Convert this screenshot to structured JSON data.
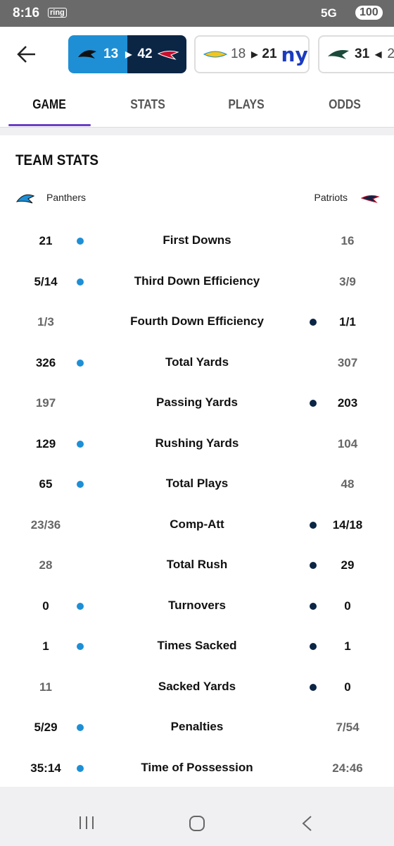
{
  "status_bar": {
    "time": "8:16",
    "app_icon": "ring",
    "network": "5G",
    "battery": "100"
  },
  "scoreboard": {
    "games": [
      {
        "away_score": "13",
        "home_score": "42"
      },
      {
        "away_score": "18",
        "home_score": "21",
        "home_logo": "ny"
      },
      {
        "away_score": "31",
        "home_score": "2"
      }
    ]
  },
  "tabs": {
    "items": [
      "GAME",
      "STATS",
      "PLAYS",
      "ODDS"
    ],
    "active": 0
  },
  "team_stats": {
    "title": "TEAM STATS",
    "away_team": "Panthers",
    "home_team": "Patriots",
    "away_color": "#1e8fd5",
    "home_color": "#0b2545",
    "rows": [
      {
        "label": "First Downs",
        "away": "21",
        "home": "16",
        "away_dot": true,
        "home_dot": false
      },
      {
        "label": "Third Down Efficiency",
        "away": "5/14",
        "home": "3/9",
        "away_dot": true,
        "home_dot": false
      },
      {
        "label": "Fourth Down Efficiency",
        "away": "1/3",
        "home": "1/1",
        "away_dot": false,
        "home_dot": true
      },
      {
        "label": "Total Yards",
        "away": "326",
        "home": "307",
        "away_dot": true,
        "home_dot": false
      },
      {
        "label": "Passing Yards",
        "away": "197",
        "home": "203",
        "away_dot": false,
        "home_dot": true
      },
      {
        "label": "Rushing Yards",
        "away": "129",
        "home": "104",
        "away_dot": true,
        "home_dot": false
      },
      {
        "label": "Total Plays",
        "away": "65",
        "home": "48",
        "away_dot": true,
        "home_dot": false
      },
      {
        "label": "Comp-Att",
        "away": "23/36",
        "home": "14/18",
        "away_dot": false,
        "home_dot": true
      },
      {
        "label": "Total Rush",
        "away": "28",
        "home": "29",
        "away_dot": false,
        "home_dot": true
      },
      {
        "label": "Turnovers",
        "away": "0",
        "home": "0",
        "away_dot": true,
        "home_dot": true
      },
      {
        "label": "Times Sacked",
        "away": "1",
        "home": "1",
        "away_dot": true,
        "home_dot": true
      },
      {
        "label": "Sacked Yards",
        "away": "11",
        "home": "0",
        "away_dot": false,
        "home_dot": true
      },
      {
        "label": "Penalties",
        "away": "5/29",
        "home": "7/54",
        "away_dot": true,
        "home_dot": false
      },
      {
        "label": "Time of Possession",
        "away": "35:14",
        "home": "24:46",
        "away_dot": true,
        "home_dot": false
      }
    ]
  }
}
